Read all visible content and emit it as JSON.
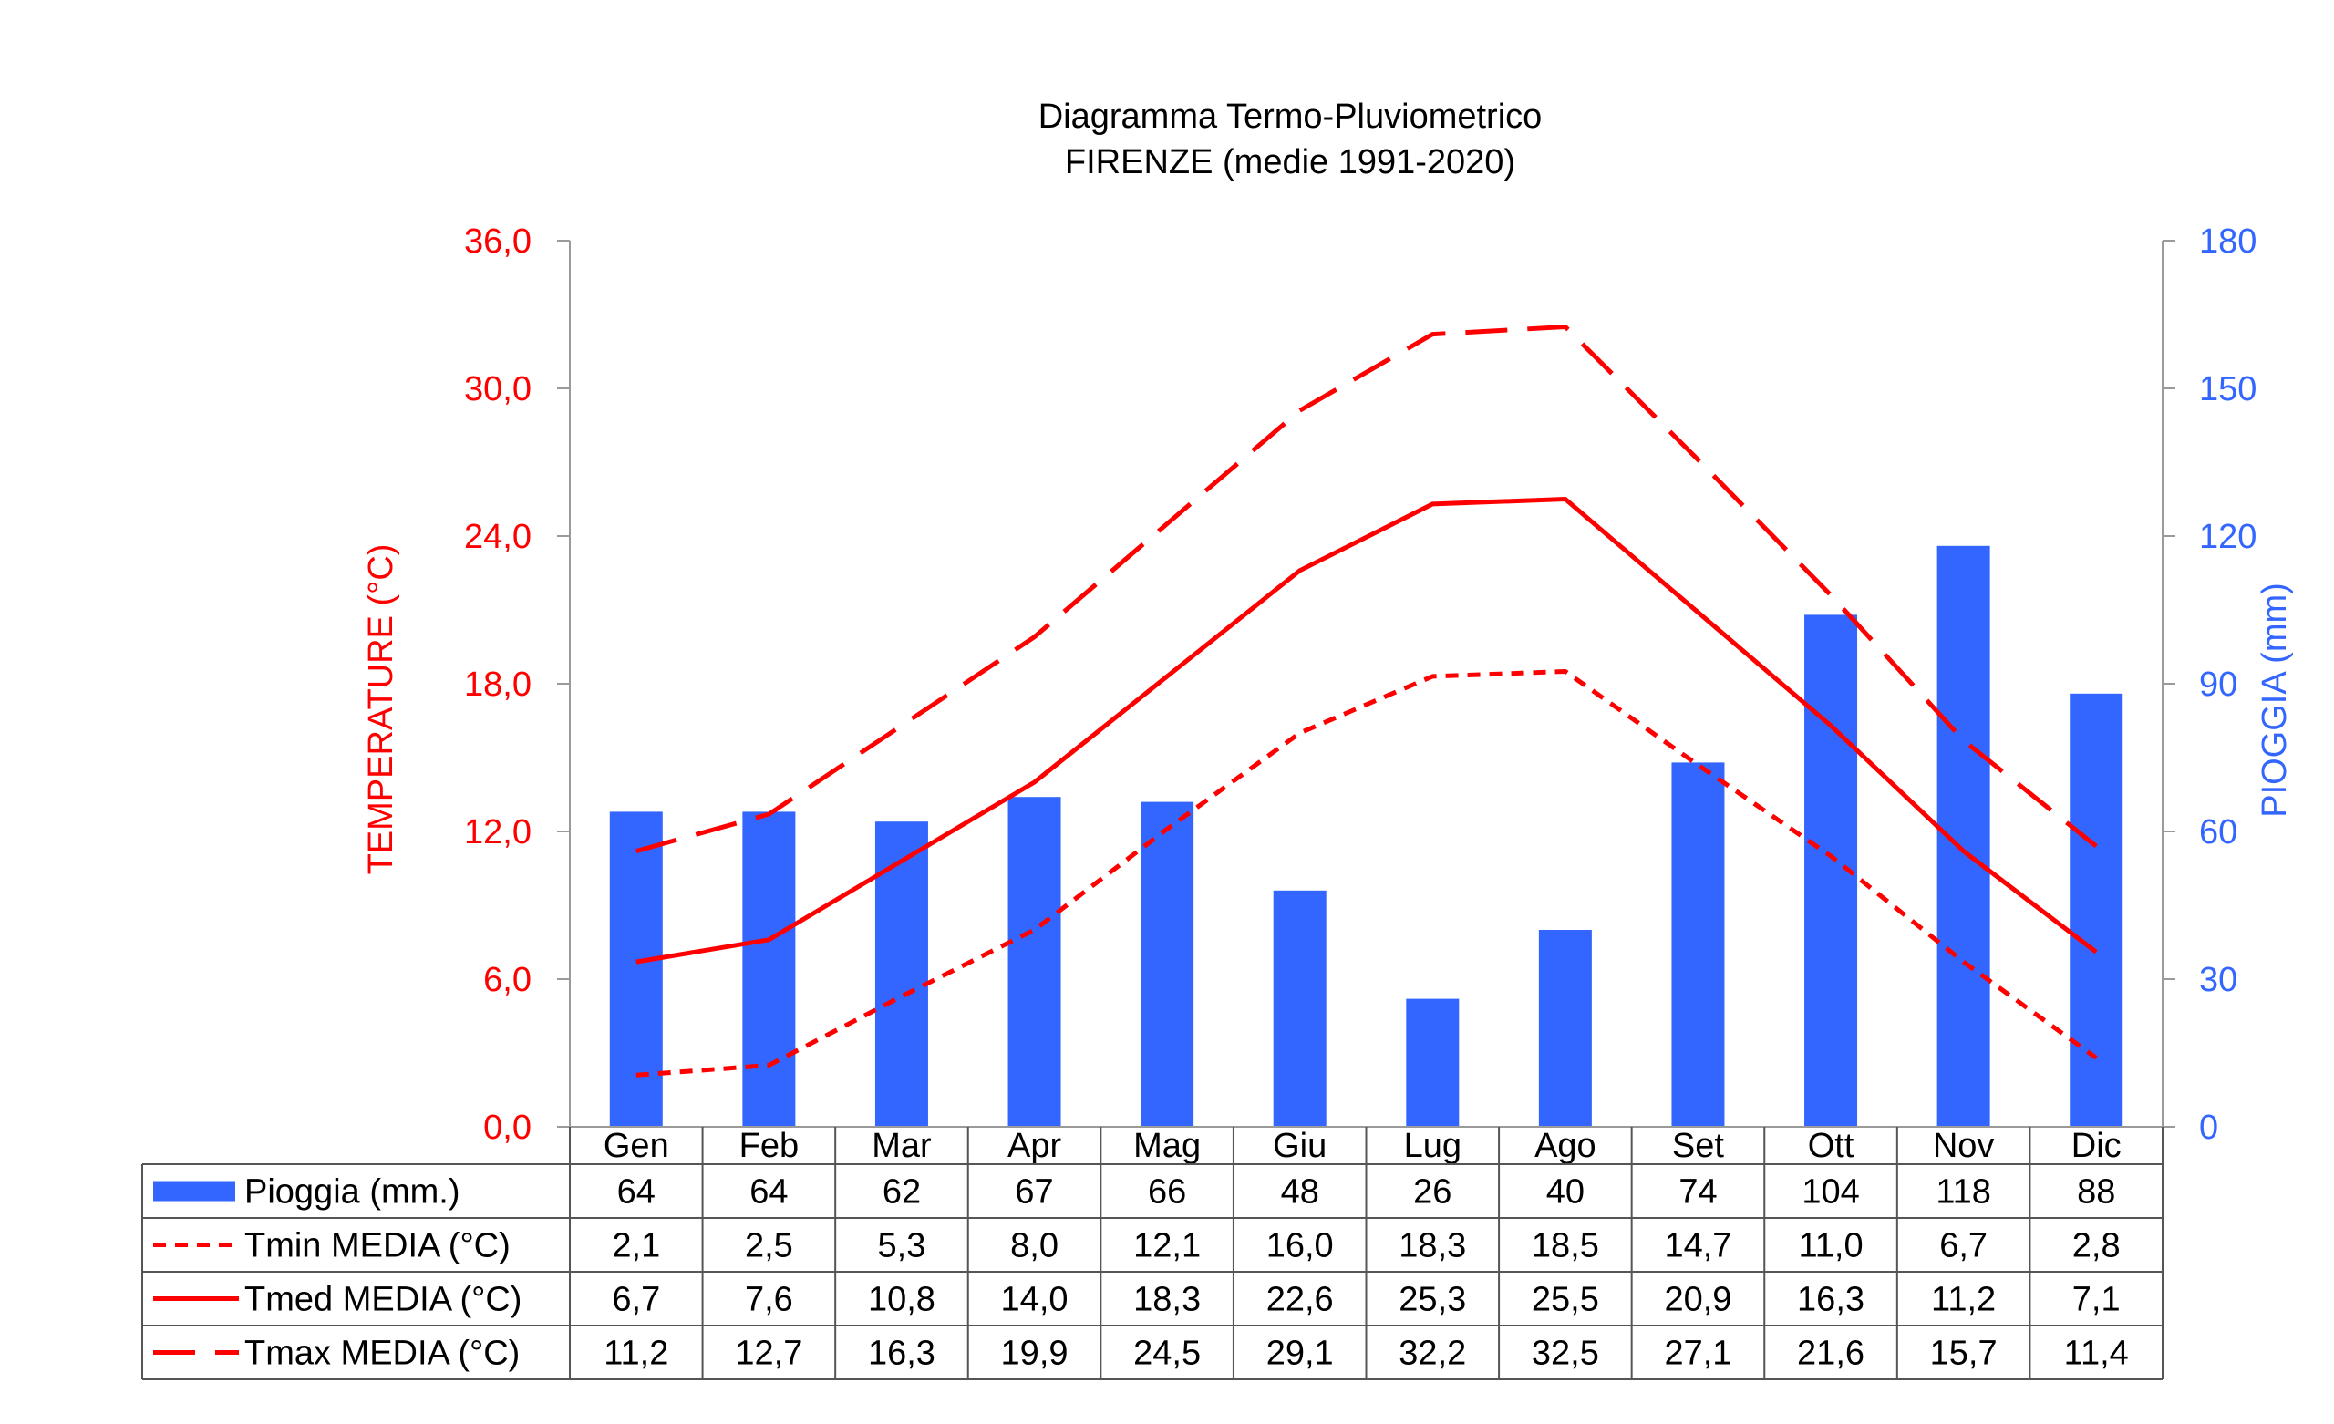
{
  "chart_data": {
    "type": "bar+line",
    "title_line1": "Diagramma Termo-Pluviometrico",
    "title_line2": "FIRENZE (medie 1991-2020)",
    "categories": [
      "Gen",
      "Feb",
      "Mar",
      "Apr",
      "Mag",
      "Giu",
      "Lug",
      "Ago",
      "Set",
      "Ott",
      "Nov",
      "Dic"
    ],
    "y_left": {
      "label": "TEMPERATURE (°C)",
      "range": [
        0,
        36
      ],
      "ticks": [
        "0,0",
        "6,0",
        "12,0",
        "18,0",
        "24,0",
        "30,0",
        "36,0"
      ],
      "color": "#ff0000"
    },
    "y_right": {
      "label": "PIOGGIA (mm)",
      "range": [
        0,
        180
      ],
      "ticks": [
        "0",
        "30",
        "60",
        "90",
        "120",
        "150",
        "180"
      ],
      "color": "#3366ff"
    },
    "series": [
      {
        "name": "Pioggia (mm.)",
        "kind": "bar",
        "axis": "right",
        "color": "#3366ff",
        "values": [
          64,
          64,
          62,
          67,
          66,
          48,
          26,
          40,
          74,
          104,
          118,
          88
        ],
        "labels": [
          "64",
          "64",
          "62",
          "67",
          "66",
          "48",
          "26",
          "40",
          "74",
          "104",
          "118",
          "88"
        ]
      },
      {
        "name": "Tmin MEDIA (°C)",
        "kind": "line",
        "style": "short-dash",
        "axis": "left",
        "color": "#ff0000",
        "values": [
          2.1,
          2.5,
          5.3,
          8.0,
          12.1,
          16.0,
          18.3,
          18.5,
          14.7,
          11.0,
          6.7,
          2.8
        ],
        "labels": [
          "2,1",
          "2,5",
          "5,3",
          "8,0",
          "12,1",
          "16,0",
          "18,3",
          "18,5",
          "14,7",
          "11,0",
          "6,7",
          "2,8"
        ]
      },
      {
        "name": "Tmed MEDIA (°C)",
        "kind": "line",
        "style": "solid",
        "axis": "left",
        "color": "#ff0000",
        "values": [
          6.7,
          7.6,
          10.8,
          14.0,
          18.3,
          22.6,
          25.3,
          25.5,
          20.9,
          16.3,
          11.2,
          7.1
        ],
        "labels": [
          "6,7",
          "7,6",
          "10,8",
          "14,0",
          "18,3",
          "22,6",
          "25,3",
          "25,5",
          "20,9",
          "16,3",
          "11,2",
          "7,1"
        ]
      },
      {
        "name": "Tmax MEDIA (°C)",
        "kind": "line",
        "style": "long-dash",
        "axis": "left",
        "color": "#ff0000",
        "values": [
          11.2,
          12.7,
          16.3,
          19.9,
          24.5,
          29.1,
          32.2,
          32.5,
          27.1,
          21.6,
          15.7,
          11.4
        ],
        "labels": [
          "11,2",
          "12,7",
          "16,3",
          "19,9",
          "24,5",
          "29,1",
          "32,2",
          "32,5",
          "27,1",
          "21,6",
          "15,7",
          "11,4"
        ]
      }
    ],
    "grid": false,
    "legend": "data-table-below"
  }
}
